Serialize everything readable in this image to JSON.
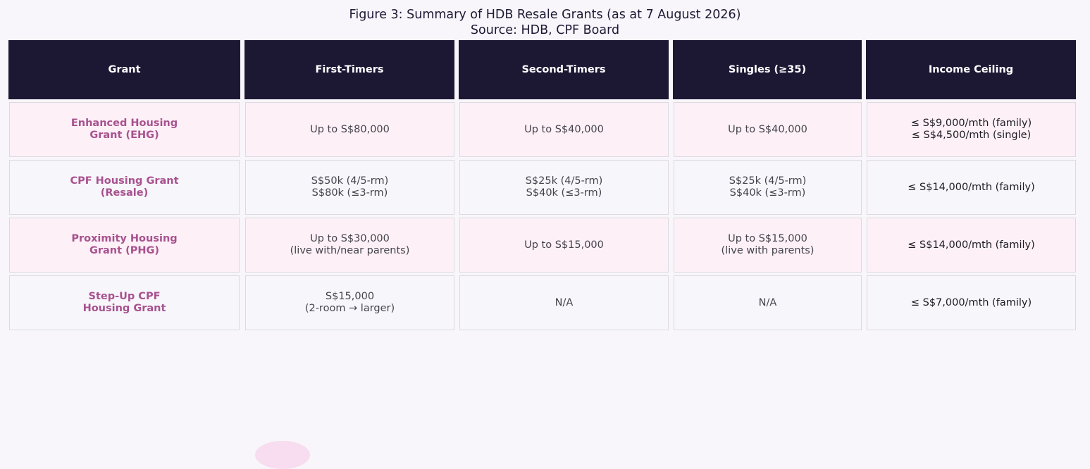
{
  "title": "Figure 3: Summary of HDB Resale Grants (as at 7 August 2026)",
  "subtitle": "Source: HDB, CPF Board",
  "colors": {
    "header_bg": "#1c1834",
    "header_text": "#ffffff",
    "grant_text": "#a8528f",
    "row_odd_bg": "#fdf0f7",
    "row_even_bg": "#f7f6fa",
    "page_bg": "#f8f6fa"
  },
  "chart_data": {
    "type": "table",
    "title": "Figure 3: Summary of HDB Resale Grants (as at 7 August 2026)",
    "columns": [
      "Grant",
      "First-Timers",
      "Second-Timers",
      "Singles (≥35)",
      "Income Ceiling"
    ],
    "rows": [
      {
        "grant": "Enhanced Housing\nGrant (EHG)",
        "first_timers": "Up to S$80,000",
        "second_timers": "Up to S$40,000",
        "singles": "Up to S$40,000",
        "income_ceiling": "≤ S$9,000/mth (family)\n≤ S$4,500/mth (single)"
      },
      {
        "grant": "CPF Housing Grant\n(Resale)",
        "first_timers": "S$50k (4/5-rm)\nS$80k (≤3-rm)",
        "second_timers": "S$25k (4/5-rm)\nS$40k (≤3-rm)",
        "singles": "S$25k (4/5-rm)\nS$40k (≤3-rm)",
        "income_ceiling": "≤ S$14,000/mth (family)"
      },
      {
        "grant": "Proximity Housing\nGrant (PHG)",
        "first_timers": "Up to S$30,000\n(live with/near parents)",
        "second_timers": "Up to S$15,000",
        "singles": "Up to S$15,000\n(live with parents)",
        "income_ceiling": "≤ S$14,000/mth (family)"
      },
      {
        "grant": "Step-Up CPF\nHousing Grant",
        "first_timers": "S$15,000\n(2-room → larger)",
        "second_timers": "N/A",
        "singles": "N/A",
        "income_ceiling": "≤ S$7,000/mth (family)"
      }
    ]
  }
}
